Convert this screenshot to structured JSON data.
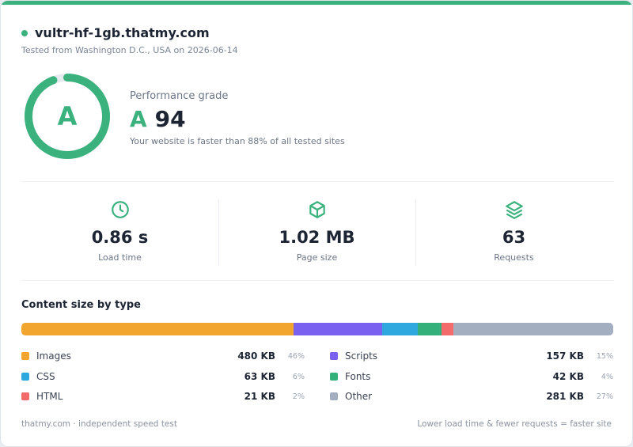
{
  "header": {
    "site_name": "vultr-hf-1gb.thatmy.com",
    "tested_from": "Tested from Washington D.C., USA on 2026-06-14"
  },
  "grade": {
    "ring_letter": "A",
    "label": "Performance grade",
    "letter": "A",
    "score": "94",
    "score_fraction": 0.94,
    "note": "Your website is faster than 88% of all tested sites"
  },
  "metrics": [
    {
      "icon": "clock-icon",
      "value": "0.86 s",
      "label": "Load time"
    },
    {
      "icon": "cube-icon",
      "value": "1.02 MB",
      "label": "Page size"
    },
    {
      "icon": "layers-icon",
      "value": "63",
      "label": "Requests"
    }
  ],
  "content_size": {
    "title": "Content size by type",
    "items": [
      {
        "name": "Images",
        "size": "480 KB",
        "percent": "46%",
        "fraction": 0.46,
        "color": "#f2a630"
      },
      {
        "name": "Scripts",
        "size": "157 KB",
        "percent": "15%",
        "fraction": 0.15,
        "color": "#7b61f0"
      },
      {
        "name": "CSS",
        "size": "63 KB",
        "percent": "6%",
        "fraction": 0.06,
        "color": "#2fa8e0"
      },
      {
        "name": "Fonts",
        "size": "42 KB",
        "percent": "4%",
        "fraction": 0.04,
        "color": "#34b07a"
      },
      {
        "name": "HTML",
        "size": "21 KB",
        "percent": "2%",
        "fraction": 0.02,
        "color": "#f46b6b"
      },
      {
        "name": "Other",
        "size": "281 KB",
        "percent": "27%",
        "fraction": 0.27,
        "color": "#a3afc0"
      }
    ]
  },
  "footer": {
    "left": "thatmy.com · independent speed test",
    "right": "Lower load time & fewer requests = faster site"
  },
  "colors": {
    "accent": "#3bb27d",
    "ring_track": "#e6ebf0"
  }
}
